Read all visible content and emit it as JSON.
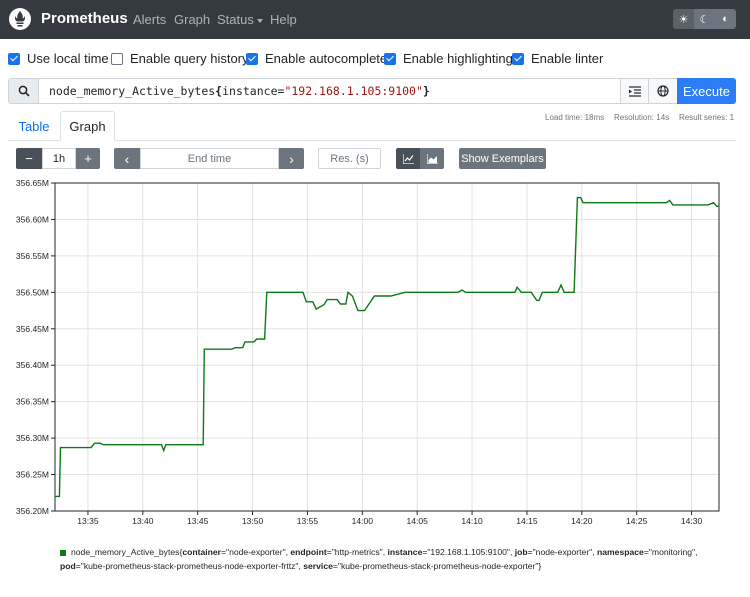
{
  "nav": {
    "brand": "Prometheus",
    "links": [
      "Alerts",
      "Graph",
      "Status",
      "Help"
    ]
  },
  "options": [
    {
      "label": "Use local time",
      "checked": true
    },
    {
      "label": "Enable query history",
      "checked": false
    },
    {
      "label": "Enable autocomplete",
      "checked": true
    },
    {
      "label": "Enable highlighting",
      "checked": true
    },
    {
      "label": "Enable linter",
      "checked": true
    }
  ],
  "query": {
    "metric": "node_memory_Active_bytes",
    "label_name": "instance",
    "label_value": "\"192.168.1.105:9100\"",
    "execute_label": "Execute"
  },
  "tabs": {
    "table": "Table",
    "graph": "Graph"
  },
  "stats": {
    "load_time": "Load time: 18ms",
    "resolution": "Resolution: 14s",
    "result_series": "Result series: 1"
  },
  "controls": {
    "minus": "−",
    "range": "1h",
    "plus": "+",
    "prev": "‹",
    "end_time_placeholder": "End time",
    "next": "›",
    "resolution_placeholder": "Res. (s)",
    "show_exemplars": "Show Exemplars"
  },
  "colors": {
    "accent": "#2b7cf5",
    "series": "#0b7a16",
    "navbar": "#343a40"
  },
  "chart_data": {
    "type": "line",
    "y_ticks": [
      "356.65M",
      "356.60M",
      "356.55M",
      "356.50M",
      "356.45M",
      "356.40M",
      "356.35M",
      "356.30M",
      "356.25M",
      "356.20M"
    ],
    "ylim": [
      356.2,
      356.65
    ],
    "y_unit": "M",
    "x_ticks": [
      "13:35",
      "13:40",
      "13:45",
      "13:50",
      "13:55",
      "14:00",
      "14:05",
      "14:10",
      "14:15",
      "14:20",
      "14:25",
      "14:30"
    ],
    "x_start_min": 812,
    "x_end_min": 872.5,
    "grid": true,
    "series": [
      {
        "x": [
          812,
          812.4,
          812.5,
          815.3,
          815.6,
          816.1,
          816.4,
          821.7,
          821.9,
          822.1,
          825.5,
          825.6,
          825.8,
          828.1,
          828.4,
          829.1,
          829.3,
          830.1,
          830.4,
          831.1,
          831.3,
          834.6,
          834.9,
          835.5,
          835.8,
          836.5,
          836.8,
          837.7,
          838.0,
          838.5,
          838.7,
          839.1,
          839.6,
          840.2,
          841.1,
          841.6,
          842.6,
          843.9,
          845.4,
          848.7,
          849.1,
          849.4,
          853.4,
          853.9,
          854.1,
          854.5,
          855.4,
          855.9,
          856.1,
          856.4,
          857.8,
          858.1,
          858.4,
          859.3,
          859.6,
          859.9,
          860.1,
          867.7,
          868.0,
          868.3,
          871.1,
          871.5,
          872.0,
          872.3,
          872.5
        ],
        "y": [
          356.22,
          356.22,
          356.287,
          356.287,
          356.293,
          356.293,
          356.291,
          356.291,
          356.283,
          356.291,
          356.291,
          356.422,
          356.422,
          356.422,
          356.424,
          356.424,
          356.432,
          356.432,
          356.436,
          356.436,
          356.5,
          356.5,
          356.487,
          356.487,
          356.477,
          356.483,
          356.49,
          356.49,
          356.484,
          356.484,
          356.5,
          356.495,
          356.475,
          356.475,
          356.495,
          356.495,
          356.495,
          356.5,
          356.5,
          356.5,
          356.503,
          356.5,
          356.5,
          356.5,
          356.507,
          356.5,
          356.5,
          356.489,
          356.489,
          356.5,
          356.5,
          356.51,
          356.5,
          356.5,
          356.63,
          356.63,
          356.623,
          356.623,
          356.626,
          356.62,
          356.62,
          356.62,
          356.623,
          356.618,
          356.618
        ]
      }
    ]
  },
  "legend": {
    "metric": "node_memory_Active_bytes",
    "labels": [
      {
        "k": "container",
        "v": "\"node-exporter\""
      },
      {
        "k": "endpoint",
        "v": "\"http-metrics\""
      },
      {
        "k": "instance",
        "v": "\"192.168.1.105:9100\""
      },
      {
        "k": "job",
        "v": "\"node-exporter\""
      },
      {
        "k": "namespace",
        "v": "\"monitoring\""
      },
      {
        "k": "pod",
        "v": "\"kube-prometheus-stack-prometheus-node-exporter-frttz\""
      },
      {
        "k": "service",
        "v": "\"kube-prometheus-stack-prometheus-node-exporter\""
      }
    ]
  }
}
